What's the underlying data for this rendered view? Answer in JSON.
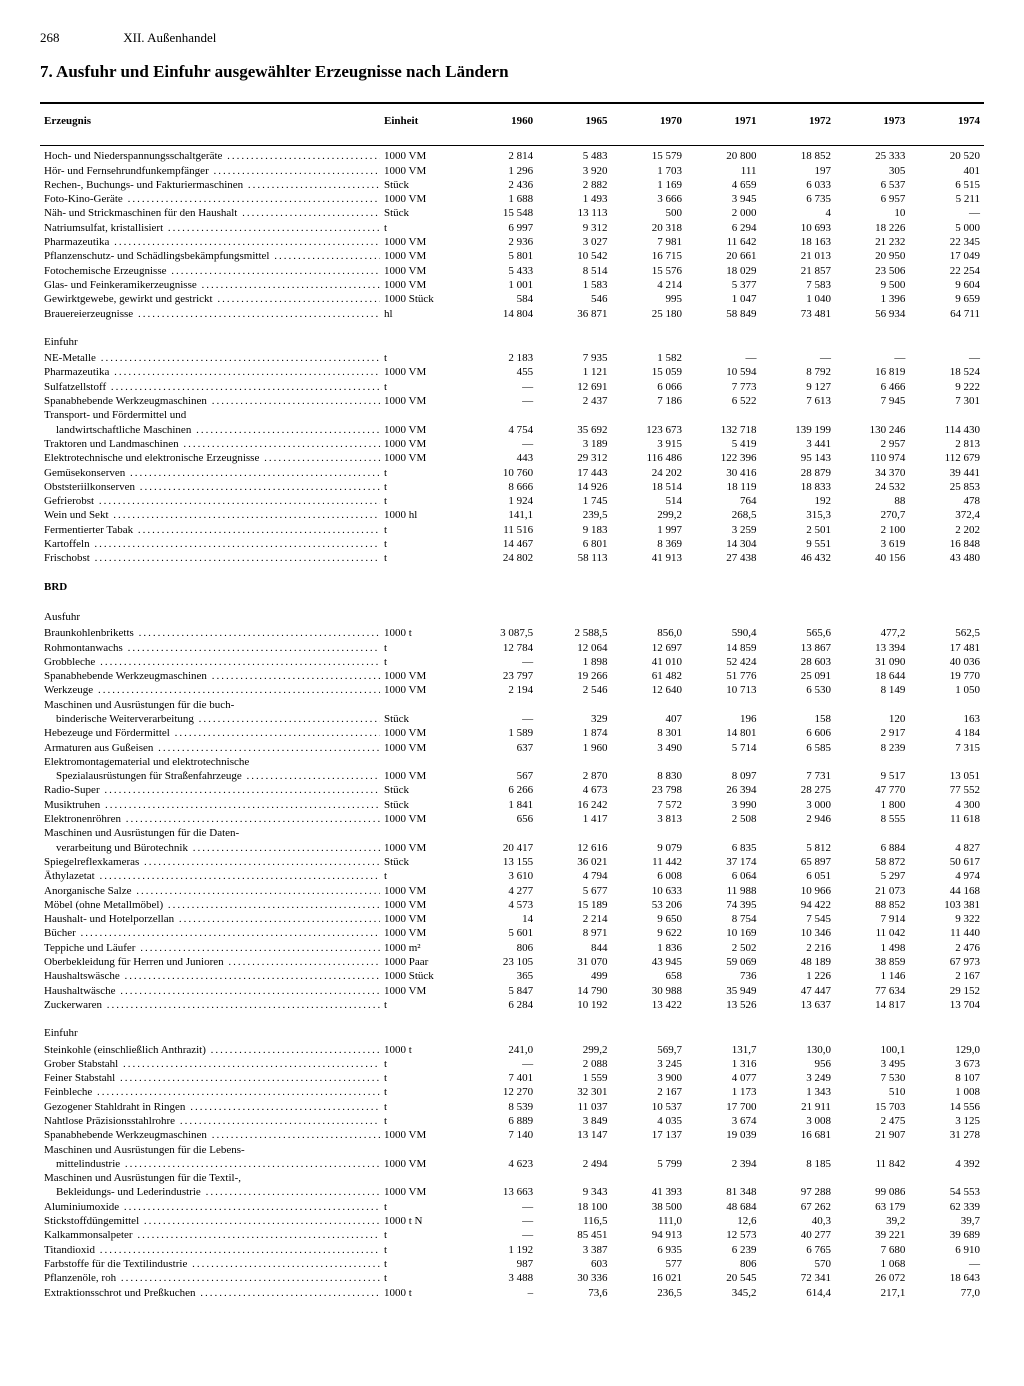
{
  "page": {
    "number": "268",
    "section": "XII. Außenhandel",
    "title": "7. Ausfuhr und Einfuhr ausgewählter Erzeugnisse nach Ländern"
  },
  "table": {
    "headers": {
      "product": "Erzeugnis",
      "unit": "Einheit",
      "years": [
        "1960",
        "1965",
        "1970",
        "1971",
        "1972",
        "1973",
        "1974"
      ]
    },
    "rows": [
      {
        "t": "data",
        "p": "Hoch- und Niederspannungsschaltgeräte",
        "u": "1000 VM",
        "v": [
          "2 814",
          "5 483",
          "15 579",
          "20 800",
          "18 852",
          "25 333",
          "20 520"
        ]
      },
      {
        "t": "data",
        "p": "Hör- und Fernsehrundfunkempfänger",
        "u": "1000 VM",
        "v": [
          "1 296",
          "3 920",
          "1 703",
          "111",
          "197",
          "305",
          "401"
        ]
      },
      {
        "t": "data",
        "p": "Rechen-, Buchungs- und Fakturiermaschinen",
        "u": "Stück",
        "v": [
          "2 436",
          "2 882",
          "1 169",
          "4 659",
          "6 033",
          "6 537",
          "6 515"
        ]
      },
      {
        "t": "data",
        "p": "Foto-Kino-Geräte",
        "u": "1000 VM",
        "v": [
          "1 688",
          "1 493",
          "3 666",
          "3 945",
          "6 735",
          "6 957",
          "5 211"
        ]
      },
      {
        "t": "data",
        "p": "Näh- und Strickmaschinen für den Haushalt",
        "u": "Stück",
        "v": [
          "15 548",
          "13 113",
          "500",
          "2 000",
          "4",
          "10",
          "—"
        ]
      },
      {
        "t": "data",
        "p": "Natriumsulfat, kristallisiert",
        "u": "t",
        "v": [
          "6 997",
          "9 312",
          "20 318",
          "6 294",
          "10 693",
          "18 226",
          "5 000"
        ]
      },
      {
        "t": "data",
        "p": "Pharmazeutika",
        "u": "1000 VM",
        "v": [
          "2 936",
          "3 027",
          "7 981",
          "11 642",
          "18 163",
          "21 232",
          "22 345"
        ]
      },
      {
        "t": "data",
        "p": "Pflanzenschutz- und Schädlingsbekämpfungsmittel",
        "u": "1000 VM",
        "v": [
          "5 801",
          "10 542",
          "16 715",
          "20 661",
          "21 013",
          "20 950",
          "17 049"
        ]
      },
      {
        "t": "data",
        "p": "Fotochemische Erzeugnisse",
        "u": "1000 VM",
        "v": [
          "5 433",
          "8 514",
          "15 576",
          "18 029",
          "21 857",
          "23 506",
          "22 254"
        ]
      },
      {
        "t": "data",
        "p": "Glas- und Feinkeramikerzeugnisse",
        "u": "1000 VM",
        "v": [
          "1 001",
          "1 583",
          "4 214",
          "5 377",
          "7 583",
          "9 500",
          "9 604"
        ]
      },
      {
        "t": "data",
        "p": "Gewirktgewebe, gewirkt und gestrickt",
        "u": "1000 Stück",
        "v": [
          "584",
          "546",
          "995",
          "1 047",
          "1 040",
          "1 396",
          "9 659"
        ]
      },
      {
        "t": "data",
        "p": "Brauereierzeugnisse",
        "u": "hl",
        "v": [
          "14 804",
          "36 871",
          "25 180",
          "58 849",
          "73 481",
          "56 934",
          "64 711"
        ]
      },
      {
        "t": "sub",
        "p": "Einfuhr"
      },
      {
        "t": "data",
        "p": "NE-Metalle",
        "u": "t",
        "v": [
          "2 183",
          "7 935",
          "1 582",
          "—",
          "—",
          "—",
          "—"
        ]
      },
      {
        "t": "data",
        "p": "Pharmazeutika",
        "u": "1000 VM",
        "v": [
          "455",
          "1 121",
          "15 059",
          "10 594",
          "8 792",
          "16 819",
          "18 524"
        ]
      },
      {
        "t": "data",
        "p": "Sulfatzellstoff",
        "u": "t",
        "v": [
          "—",
          "12 691",
          "6 066",
          "7 773",
          "9 127",
          "6 466",
          "9 222"
        ]
      },
      {
        "t": "data",
        "p": "Spanabhebende Werkzeugmaschinen",
        "u": "1000 VM",
        "v": [
          "—",
          "2 437",
          "7 186",
          "6 522",
          "7 613",
          "7 945",
          "7 301"
        ]
      },
      {
        "t": "nowrap",
        "p": "Transport- und Fördermittel und"
      },
      {
        "t": "cont",
        "p": "landwirtschaftliche Maschinen",
        "u": "1000 VM",
        "v": [
          "4 754",
          "35 692",
          "123 673",
          "132 718",
          "139 199",
          "130 246",
          "114 430"
        ]
      },
      {
        "t": "data",
        "p": "Traktoren und Landmaschinen",
        "u": "1000 VM",
        "v": [
          "—",
          "3 189",
          "3 915",
          "5 419",
          "3 441",
          "2 957",
          "2 813"
        ]
      },
      {
        "t": "data",
        "p": "Elektrotechnische und elektronische Erzeugnisse",
        "u": "1000 VM",
        "v": [
          "443",
          "29 312",
          "116 486",
          "122 396",
          "95 143",
          "110 974",
          "112 679"
        ]
      },
      {
        "t": "data",
        "p": "Gemüsekonserven",
        "u": "t",
        "v": [
          "10 760",
          "17 443",
          "24 202",
          "30 416",
          "28 879",
          "34 370",
          "39 441"
        ]
      },
      {
        "t": "data",
        "p": "Obststeriilkonserven",
        "u": "t",
        "v": [
          "8 666",
          "14 926",
          "18 514",
          "18 119",
          "18 833",
          "24 532",
          "25 853"
        ]
      },
      {
        "t": "data",
        "p": "Gefrierobst",
        "u": "t",
        "v": [
          "1 924",
          "1 745",
          "514",
          "764",
          "192",
          "88",
          "478"
        ]
      },
      {
        "t": "data",
        "p": "Wein und Sekt",
        "u": "1000 hl",
        "v": [
          "141,1",
          "239,5",
          "299,2",
          "268,5",
          "315,3",
          "270,7",
          "372,4"
        ]
      },
      {
        "t": "data",
        "p": "Fermentierter Tabak",
        "u": "t",
        "v": [
          "11 516",
          "9 183",
          "1 997",
          "3 259",
          "2 501",
          "2 100",
          "2 202"
        ]
      },
      {
        "t": "data",
        "p": "Kartoffeln",
        "u": "t",
        "v": [
          "14 467",
          "6 801",
          "8 369",
          "14 304",
          "9 551",
          "3 619",
          "16 848"
        ]
      },
      {
        "t": "data",
        "p": "Frischobst",
        "u": "t",
        "v": [
          "24 802",
          "58 113",
          "41 913",
          "27 438",
          "46 432",
          "40 156",
          "43 480"
        ]
      },
      {
        "t": "section",
        "p": "BRD"
      },
      {
        "t": "sub",
        "p": "Ausfuhr"
      },
      {
        "t": "data",
        "p": "Braunkohlenbriketts",
        "u": "1000 t",
        "v": [
          "3 087,5",
          "2 588,5",
          "856,0",
          "590,4",
          "565,6",
          "477,2",
          "562,5"
        ]
      },
      {
        "t": "data",
        "p": "Rohmontanwachs",
        "u": "t",
        "v": [
          "12 784",
          "12 064",
          "12 697",
          "14 859",
          "13 867",
          "13 394",
          "17 481"
        ]
      },
      {
        "t": "data",
        "p": "Grobbleche",
        "u": "t",
        "v": [
          "—",
          "1 898",
          "41 010",
          "52 424",
          "28 603",
          "31 090",
          "40 036"
        ]
      },
      {
        "t": "data",
        "p": "Spanabhebende Werkzeugmaschinen",
        "u": "1000 VM",
        "v": [
          "23 797",
          "19 266",
          "61 482",
          "51 776",
          "25 091",
          "18 644",
          "19 770"
        ]
      },
      {
        "t": "data",
        "p": "Werkzeuge",
        "u": "1000 VM",
        "v": [
          "2 194",
          "2 546",
          "12 640",
          "10 713",
          "6 530",
          "8 149",
          "1 050"
        ]
      },
      {
        "t": "nowrap",
        "p": "Maschinen und Ausrüstungen für die buch-"
      },
      {
        "t": "cont",
        "p": "binderische Weiterverarbeitung",
        "u": "Stück",
        "v": [
          "—",
          "329",
          "407",
          "196",
          "158",
          "120",
          "163"
        ]
      },
      {
        "t": "data",
        "p": "Hebezeuge und Fördermittel",
        "u": "1000 VM",
        "v": [
          "1 589",
          "1 874",
          "8 301",
          "14 801",
          "6 606",
          "2 917",
          "4 184"
        ]
      },
      {
        "t": "data",
        "p": "Armaturen aus Gußeisen",
        "u": "1000 VM",
        "v": [
          "637",
          "1 960",
          "3 490",
          "5 714",
          "6 585",
          "8 239",
          "7 315"
        ]
      },
      {
        "t": "nowrap",
        "p": "Elektromontagematerial und elektrotechnische"
      },
      {
        "t": "cont",
        "p": "Spezialausrüstungen für Straßenfahrzeuge",
        "u": "1000 VM",
        "v": [
          "567",
          "2 870",
          "8 830",
          "8 097",
          "7 731",
          "9 517",
          "13 051"
        ]
      },
      {
        "t": "data",
        "p": "Radio-Super",
        "u": "Stück",
        "v": [
          "6 266",
          "4 673",
          "23 798",
          "26 394",
          "28 275",
          "47 770",
          "77 552"
        ]
      },
      {
        "t": "data",
        "p": "Musiktruhen",
        "u": "Stück",
        "v": [
          "1 841",
          "16 242",
          "7 572",
          "3 990",
          "3 000",
          "1 800",
          "4 300"
        ]
      },
      {
        "t": "data",
        "p": "Elektronenröhren",
        "u": "1000 VM",
        "v": [
          "656",
          "1 417",
          "3 813",
          "2 508",
          "2 946",
          "8 555",
          "11 618"
        ]
      },
      {
        "t": "nowrap",
        "p": "Maschinen und Ausrüstungen für die Daten-"
      },
      {
        "t": "cont",
        "p": "verarbeitung und Bürotechnik",
        "u": "1000 VM",
        "v": [
          "20 417",
          "12 616",
          "9 079",
          "6 835",
          "5 812",
          "6 884",
          "4 827"
        ]
      },
      {
        "t": "data",
        "p": "Spiegelreflexkameras",
        "u": "Stück",
        "v": [
          "13 155",
          "36 021",
          "11 442",
          "37 174",
          "65 897",
          "58 872",
          "50 617"
        ]
      },
      {
        "t": "data",
        "p": "Äthylazetat",
        "u": "t",
        "v": [
          "3 610",
          "4 794",
          "6 008",
          "6 064",
          "6 051",
          "5 297",
          "4 974"
        ]
      },
      {
        "t": "data",
        "p": "Anorganische Salze",
        "u": "1000 VM",
        "v": [
          "4 277",
          "5 677",
          "10 633",
          "11 988",
          "10 966",
          "21 073",
          "44 168"
        ]
      },
      {
        "t": "data",
        "p": "Möbel (ohne Metallmöbel)",
        "u": "1000 VM",
        "v": [
          "4 573",
          "15 189",
          "53 206",
          "74 395",
          "94 422",
          "88 852",
          "103 381"
        ]
      },
      {
        "t": "data",
        "p": "Haushalt- und Hotelporzellan",
        "u": "1000 VM",
        "v": [
          "14",
          "2 214",
          "9 650",
          "8 754",
          "7 545",
          "7 914",
          "9 322"
        ]
      },
      {
        "t": "data",
        "p": "Bücher",
        "u": "1000 VM",
        "v": [
          "5 601",
          "8 971",
          "9 622",
          "10 169",
          "10 346",
          "11 042",
          "11 440"
        ]
      },
      {
        "t": "data",
        "p": "Teppiche und Läufer",
        "u": "1000 m²",
        "v": [
          "806",
          "844",
          "1 836",
          "2 502",
          "2 216",
          "1 498",
          "2 476"
        ]
      },
      {
        "t": "data",
        "p": "Oberbekleidung für Herren und Junioren",
        "u": "1000 Paar",
        "v": [
          "23 105",
          "31 070",
          "43 945",
          "59 069",
          "48 189",
          "38 859",
          "67 973"
        ]
      },
      {
        "t": "data",
        "p": "Haushaltswäsche",
        "u": "1000 Stück",
        "v": [
          "365",
          "499",
          "658",
          "736",
          "1 226",
          "1 146",
          "2 167"
        ]
      },
      {
        "t": "data",
        "p": "Haushaltwäsche",
        "u": "1000 VM",
        "v": [
          "5 847",
          "14 790",
          "30 988",
          "35 949",
          "47 447",
          "77 634",
          "29 152"
        ]
      },
      {
        "t": "data",
        "p": "Zuckerwaren",
        "u": "t",
        "v": [
          "6 284",
          "10 192",
          "13 422",
          "13 526",
          "13 637",
          "14 817",
          "13 704"
        ]
      },
      {
        "t": "sub",
        "p": "Einfuhr"
      },
      {
        "t": "data",
        "p": "Steinkohle (einschließlich Anthrazit)",
        "u": "1000 t",
        "v": [
          "241,0",
          "299,2",
          "569,7",
          "131,7",
          "130,0",
          "100,1",
          "129,0"
        ]
      },
      {
        "t": "data",
        "p": "Grober Stabstahl",
        "u": "t",
        "v": [
          "—",
          "2 088",
          "3 245",
          "1 316",
          "956",
          "3 495",
          "3 673"
        ]
      },
      {
        "t": "data",
        "p": "Feiner Stabstahl",
        "u": "t",
        "v": [
          "7 401",
          "1 559",
          "3 900",
          "4 077",
          "3 249",
          "7 530",
          "8 107"
        ]
      },
      {
        "t": "data",
        "p": "Feinbleche",
        "u": "t",
        "v": [
          "12 270",
          "32 301",
          "2 167",
          "1 173",
          "1 343",
          "510",
          "1 008"
        ]
      },
      {
        "t": "data",
        "p": "Gezogener Stahldraht in Ringen",
        "u": "t",
        "v": [
          "8 539",
          "11 037",
          "10 537",
          "17 700",
          "21 911",
          "15 703",
          "14 556"
        ]
      },
      {
        "t": "data",
        "p": "Nahtlose Präzisionsstahlrohre",
        "u": "t",
        "v": [
          "6 889",
          "3 849",
          "4 035",
          "3 674",
          "3 008",
          "2 475",
          "3 125"
        ]
      },
      {
        "t": "data",
        "p": "Spanabhebende Werkzeugmaschinen",
        "u": "1000 VM",
        "v": [
          "7 140",
          "13 147",
          "17 137",
          "19 039",
          "16 681",
          "21 907",
          "31 278"
        ]
      },
      {
        "t": "nowrap",
        "p": "Maschinen und Ausrüstungen für die Lebens-"
      },
      {
        "t": "cont",
        "p": "mittelindustrie",
        "u": "1000 VM",
        "v": [
          "4 623",
          "2 494",
          "5 799",
          "2 394",
          "8 185",
          "11 842",
          "4 392"
        ]
      },
      {
        "t": "nowrap",
        "p": "Maschinen und Ausrüstungen für die Textil-,"
      },
      {
        "t": "cont",
        "p": "Bekleidungs- und Lederindustrie",
        "u": "1000 VM",
        "v": [
          "13 663",
          "9 343",
          "41 393",
          "81 348",
          "97 288",
          "99 086",
          "54 553"
        ]
      },
      {
        "t": "data",
        "p": "Aluminiumoxide",
        "u": "t",
        "v": [
          "—",
          "18 100",
          "38 500",
          "48 684",
          "67 262",
          "63 179",
          "62 339"
        ]
      },
      {
        "t": "data",
        "p": "Stickstoffdüngemittel",
        "u": "1000 t N",
        "v": [
          "—",
          "116,5",
          "111,0",
          "12,6",
          "40,3",
          "39,2",
          "39,7"
        ]
      },
      {
        "t": "data",
        "p": "Kalkammonsalpeter",
        "u": "t",
        "v": [
          "—",
          "85 451",
          "94 913",
          "12 573",
          "40 277",
          "39 221",
          "39 689"
        ]
      },
      {
        "t": "data",
        "p": "Titandioxid",
        "u": "t",
        "v": [
          "1 192",
          "3 387",
          "6 935",
          "6 239",
          "6 765",
          "7 680",
          "6 910"
        ]
      },
      {
        "t": "data",
        "p": "Farbstoffe für die Textilindustrie",
        "u": "t",
        "v": [
          "987",
          "603",
          "577",
          "806",
          "570",
          "1 068",
          "—"
        ]
      },
      {
        "t": "data",
        "p": "Pflanzenöle, roh",
        "u": "t",
        "v": [
          "3 488",
          "30 336",
          "16 021",
          "20 545",
          "72 341",
          "26 072",
          "18 643"
        ]
      },
      {
        "t": "data",
        "p": "Extraktionsschrot und Preßkuchen",
        "u": "1000 t",
        "v": [
          "–",
          "73,6",
          "236,5",
          "345,2",
          "614,4",
          "217,1",
          "77,0"
        ]
      }
    ]
  }
}
